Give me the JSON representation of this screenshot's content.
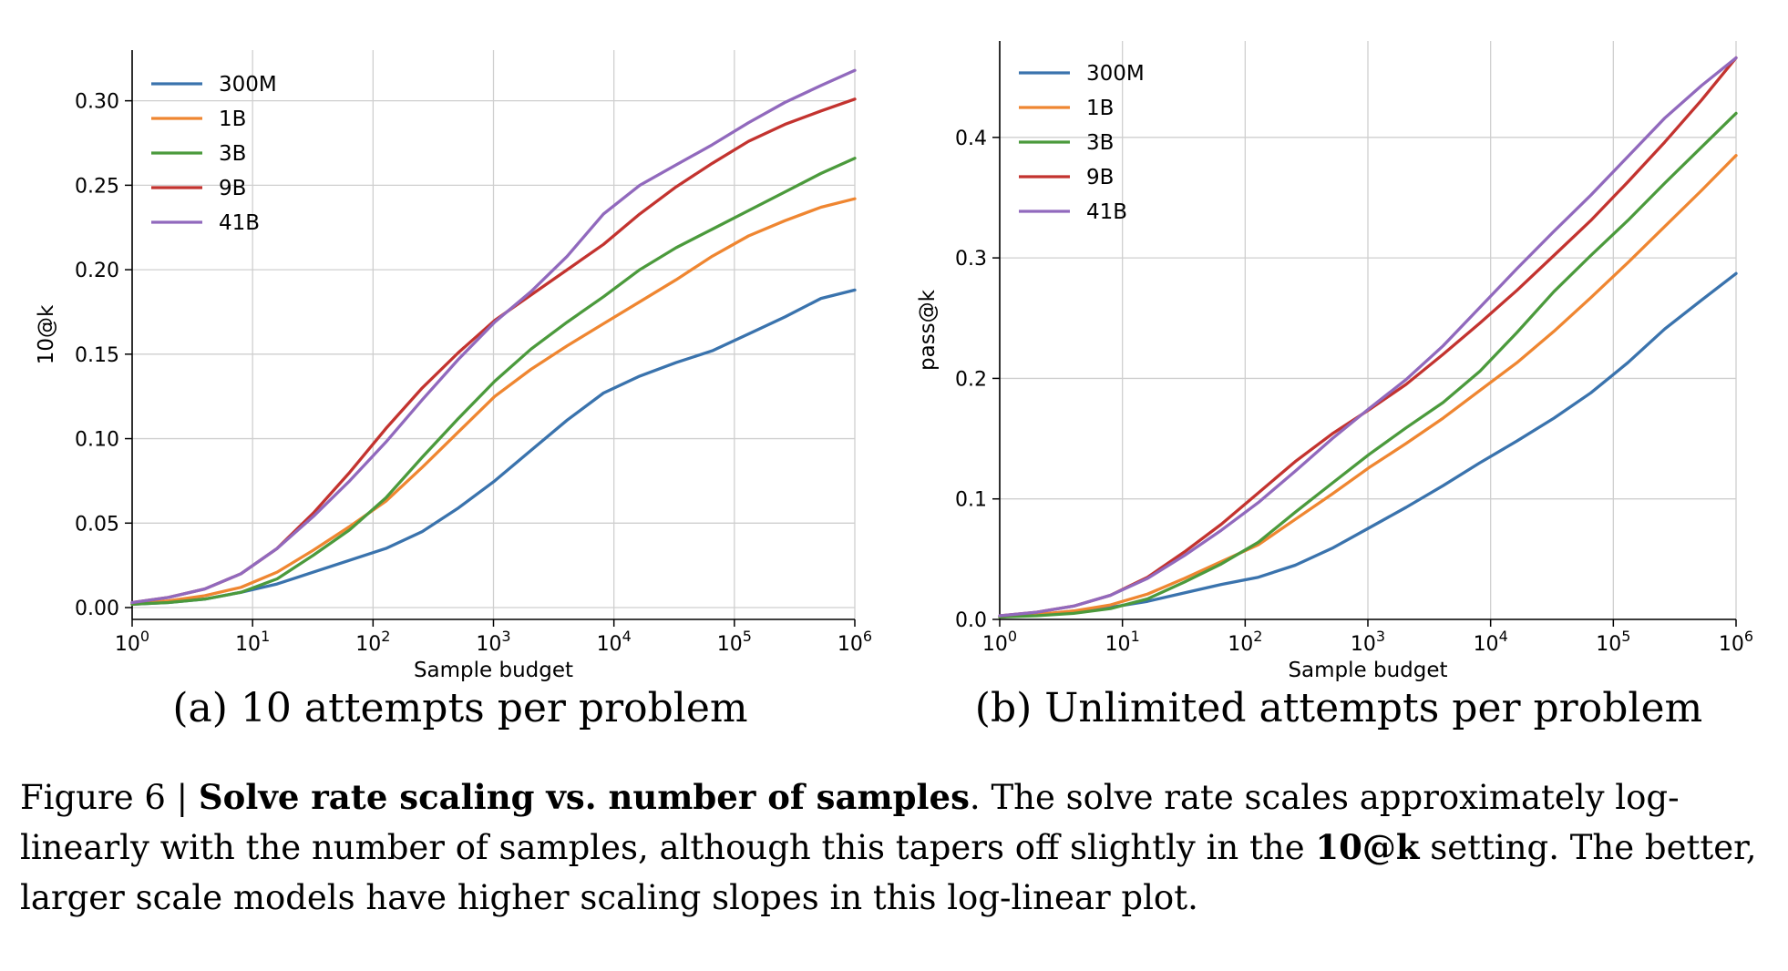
{
  "chart_data": [
    {
      "type": "line",
      "subcaption": "(a) 10 attempts per problem",
      "xlabel": "Sample budget",
      "ylabel": "10@k",
      "xscale": "log",
      "xlim": [
        1,
        1000000
      ],
      "ylim": [
        -0.007,
        0.33
      ],
      "x_ticks": [
        {
          "value": 1,
          "base": "10",
          "exp": "0"
        },
        {
          "value": 10,
          "base": "10",
          "exp": "1"
        },
        {
          "value": 100,
          "base": "10",
          "exp": "2"
        },
        {
          "value": 1000,
          "base": "10",
          "exp": "3"
        },
        {
          "value": 10000,
          "base": "10",
          "exp": "4"
        },
        {
          "value": 100000,
          "base": "10",
          "exp": "5"
        },
        {
          "value": 1000000,
          "base": "10",
          "exp": "6"
        }
      ],
      "y_ticks": [
        {
          "value": 0.0,
          "label": "0.00"
        },
        {
          "value": 0.05,
          "label": "0.05"
        },
        {
          "value": 0.1,
          "label": "0.10"
        },
        {
          "value": 0.15,
          "label": "0.15"
        },
        {
          "value": 0.2,
          "label": "0.20"
        },
        {
          "value": 0.25,
          "label": "0.25"
        },
        {
          "value": 0.3,
          "label": "0.30"
        }
      ],
      "grid": true,
      "legend": "top-left",
      "series": [
        {
          "name": "300M",
          "color": "#3a73ad",
          "points": [
            [
              1,
              0.002
            ],
            [
              2,
              0.003
            ],
            [
              4,
              0.005
            ],
            [
              8,
              0.009
            ],
            [
              16,
              0.014
            ],
            [
              32,
              0.021
            ],
            [
              64,
              0.028
            ],
            [
              128,
              0.035
            ],
            [
              256,
              0.045
            ],
            [
              512,
              0.059
            ],
            [
              1024,
              0.075
            ],
            [
              2048,
              0.093
            ],
            [
              4096,
              0.111
            ],
            [
              8192,
              0.127
            ],
            [
              16384,
              0.137
            ],
            [
              32768,
              0.145
            ],
            [
              65536,
              0.152
            ],
            [
              131072,
              0.162
            ],
            [
              262144,
              0.172
            ],
            [
              524288,
              0.183
            ],
            [
              1000000,
              0.188
            ]
          ]
        },
        {
          "name": "1B",
          "color": "#ef8631",
          "points": [
            [
              1,
              0.002
            ],
            [
              2,
              0.004
            ],
            [
              4,
              0.007
            ],
            [
              8,
              0.012
            ],
            [
              16,
              0.021
            ],
            [
              32,
              0.034
            ],
            [
              64,
              0.048
            ],
            [
              128,
              0.063
            ],
            [
              256,
              0.083
            ],
            [
              512,
              0.104
            ],
            [
              1024,
              0.125
            ],
            [
              2048,
              0.141
            ],
            [
              4096,
              0.155
            ],
            [
              8192,
              0.168
            ],
            [
              16384,
              0.181
            ],
            [
              32768,
              0.194
            ],
            [
              65536,
              0.208
            ],
            [
              131072,
              0.22
            ],
            [
              262144,
              0.229
            ],
            [
              524288,
              0.237
            ],
            [
              1000000,
              0.242
            ]
          ]
        },
        {
          "name": "3B",
          "color": "#4b9a3c",
          "points": [
            [
              1,
              0.002
            ],
            [
              2,
              0.003
            ],
            [
              4,
              0.005
            ],
            [
              8,
              0.009
            ],
            [
              16,
              0.017
            ],
            [
              32,
              0.031
            ],
            [
              64,
              0.046
            ],
            [
              128,
              0.065
            ],
            [
              256,
              0.089
            ],
            [
              512,
              0.112
            ],
            [
              1024,
              0.134
            ],
            [
              2048,
              0.153
            ],
            [
              4096,
              0.169
            ],
            [
              8192,
              0.184
            ],
            [
              16384,
              0.2
            ],
            [
              32768,
              0.213
            ],
            [
              65536,
              0.224
            ],
            [
              131072,
              0.235
            ],
            [
              262144,
              0.246
            ],
            [
              524288,
              0.257
            ],
            [
              1000000,
              0.266
            ]
          ]
        },
        {
          "name": "9B",
          "color": "#c3332f",
          "points": [
            [
              1,
              0.003
            ],
            [
              2,
              0.006
            ],
            [
              4,
              0.011
            ],
            [
              8,
              0.02
            ],
            [
              16,
              0.035
            ],
            [
              32,
              0.056
            ],
            [
              64,
              0.08
            ],
            [
              128,
              0.106
            ],
            [
              256,
              0.13
            ],
            [
              512,
              0.151
            ],
            [
              1024,
              0.17
            ],
            [
              2048,
              0.185
            ],
            [
              4096,
              0.2
            ],
            [
              8192,
              0.215
            ],
            [
              16384,
              0.233
            ],
            [
              32768,
              0.249
            ],
            [
              65536,
              0.263
            ],
            [
              131072,
              0.276
            ],
            [
              262144,
              0.286
            ],
            [
              524288,
              0.294
            ],
            [
              1000000,
              0.301
            ]
          ]
        },
        {
          "name": "41B",
          "color": "#9169bd",
          "points": [
            [
              1,
              0.003
            ],
            [
              2,
              0.006
            ],
            [
              4,
              0.011
            ],
            [
              8,
              0.02
            ],
            [
              16,
              0.035
            ],
            [
              32,
              0.054
            ],
            [
              64,
              0.075
            ],
            [
              128,
              0.098
            ],
            [
              256,
              0.123
            ],
            [
              512,
              0.147
            ],
            [
              1024,
              0.169
            ],
            [
              2048,
              0.187
            ],
            [
              4096,
              0.208
            ],
            [
              8192,
              0.233
            ],
            [
              16384,
              0.25
            ],
            [
              32768,
              0.262
            ],
            [
              65536,
              0.274
            ],
            [
              131072,
              0.287
            ],
            [
              262144,
              0.299
            ],
            [
              524288,
              0.309
            ],
            [
              1000000,
              0.318
            ]
          ]
        }
      ]
    },
    {
      "type": "line",
      "subcaption": "(b) Unlimited attempts per problem",
      "xlabel": "Sample budget",
      "ylabel": "pass@k",
      "xscale": "log",
      "xlim": [
        1,
        1000000
      ],
      "ylim": [
        0,
        0.48
      ],
      "x_ticks": [
        {
          "value": 1,
          "base": "10",
          "exp": "0"
        },
        {
          "value": 10,
          "base": "10",
          "exp": "1"
        },
        {
          "value": 100,
          "base": "10",
          "exp": "2"
        },
        {
          "value": 1000,
          "base": "10",
          "exp": "3"
        },
        {
          "value": 10000,
          "base": "10",
          "exp": "4"
        },
        {
          "value": 100000,
          "base": "10",
          "exp": "5"
        },
        {
          "value": 1000000,
          "base": "10",
          "exp": "6"
        }
      ],
      "y_ticks": [
        {
          "value": 0.0,
          "label": "0.0"
        },
        {
          "value": 0.1,
          "label": "0.1"
        },
        {
          "value": 0.2,
          "label": "0.2"
        },
        {
          "value": 0.3,
          "label": "0.3"
        },
        {
          "value": 0.4,
          "label": "0.4"
        }
      ],
      "grid": true,
      "legend": "top-left",
      "series": [
        {
          "name": "300M",
          "color": "#3a73ad",
          "points": [
            [
              1,
              0.002
            ],
            [
              2,
              0.004
            ],
            [
              4,
              0.006
            ],
            [
              8,
              0.01
            ],
            [
              16,
              0.015
            ],
            [
              32,
              0.022
            ],
            [
              64,
              0.029
            ],
            [
              128,
              0.035
            ],
            [
              256,
              0.045
            ],
            [
              512,
              0.059
            ],
            [
              1024,
              0.076
            ],
            [
              2048,
              0.093
            ],
            [
              4096,
              0.111
            ],
            [
              8192,
              0.13
            ],
            [
              16384,
              0.148
            ],
            [
              32768,
              0.167
            ],
            [
              65536,
              0.188
            ],
            [
              131072,
              0.213
            ],
            [
              262144,
              0.241
            ],
            [
              524288,
              0.265
            ],
            [
              1000000,
              0.287
            ]
          ]
        },
        {
          "name": "1B",
          "color": "#ef8631",
          "points": [
            [
              1,
              0.002
            ],
            [
              2,
              0.004
            ],
            [
              4,
              0.007
            ],
            [
              8,
              0.012
            ],
            [
              16,
              0.021
            ],
            [
              32,
              0.034
            ],
            [
              64,
              0.048
            ],
            [
              128,
              0.062
            ],
            [
              256,
              0.083
            ],
            [
              512,
              0.104
            ],
            [
              1024,
              0.126
            ],
            [
              2048,
              0.146
            ],
            [
              4096,
              0.167
            ],
            [
              8192,
              0.19
            ],
            [
              16384,
              0.213
            ],
            [
              32768,
              0.239
            ],
            [
              65536,
              0.267
            ],
            [
              131072,
              0.296
            ],
            [
              262144,
              0.326
            ],
            [
              524288,
              0.356
            ],
            [
              1000000,
              0.385
            ]
          ]
        },
        {
          "name": "3B",
          "color": "#4b9a3c",
          "points": [
            [
              1,
              0.002
            ],
            [
              2,
              0.003
            ],
            [
              4,
              0.005
            ],
            [
              8,
              0.009
            ],
            [
              16,
              0.017
            ],
            [
              32,
              0.031
            ],
            [
              64,
              0.046
            ],
            [
              128,
              0.064
            ],
            [
              256,
              0.089
            ],
            [
              512,
              0.113
            ],
            [
              1024,
              0.137
            ],
            [
              2048,
              0.159
            ],
            [
              4096,
              0.18
            ],
            [
              8192,
              0.206
            ],
            [
              16384,
              0.238
            ],
            [
              32768,
              0.272
            ],
            [
              65536,
              0.302
            ],
            [
              131072,
              0.331
            ],
            [
              262144,
              0.362
            ],
            [
              524288,
              0.392
            ],
            [
              1000000,
              0.42
            ]
          ]
        },
        {
          "name": "9B",
          "color": "#c3332f",
          "points": [
            [
              1,
              0.003
            ],
            [
              2,
              0.006
            ],
            [
              4,
              0.011
            ],
            [
              8,
              0.02
            ],
            [
              16,
              0.035
            ],
            [
              32,
              0.056
            ],
            [
              64,
              0.079
            ],
            [
              128,
              0.105
            ],
            [
              256,
              0.131
            ],
            [
              512,
              0.154
            ],
            [
              1024,
              0.174
            ],
            [
              2048,
              0.195
            ],
            [
              4096,
              0.22
            ],
            [
              8192,
              0.246
            ],
            [
              16384,
              0.273
            ],
            [
              32768,
              0.302
            ],
            [
              65536,
              0.331
            ],
            [
              131072,
              0.363
            ],
            [
              262144,
              0.396
            ],
            [
              524288,
              0.431
            ],
            [
              1000000,
              0.466
            ]
          ]
        },
        {
          "name": "41B",
          "color": "#9169bd",
          "points": [
            [
              1,
              0.003
            ],
            [
              2,
              0.006
            ],
            [
              4,
              0.011
            ],
            [
              8,
              0.02
            ],
            [
              16,
              0.034
            ],
            [
              32,
              0.053
            ],
            [
              64,
              0.074
            ],
            [
              128,
              0.097
            ],
            [
              256,
              0.123
            ],
            [
              512,
              0.15
            ],
            [
              1024,
              0.175
            ],
            [
              2048,
              0.199
            ],
            [
              4096,
              0.227
            ],
            [
              8192,
              0.259
            ],
            [
              16384,
              0.291
            ],
            [
              32768,
              0.322
            ],
            [
              65536,
              0.352
            ],
            [
              131072,
              0.384
            ],
            [
              262144,
              0.416
            ],
            [
              524288,
              0.443
            ],
            [
              1000000,
              0.466
            ]
          ]
        }
      ]
    }
  ],
  "caption": {
    "prefix": "Figure 6 | ",
    "bold_title": "Solve rate scaling vs. number of samples",
    "text1": ". The solve rate scales approximately log-linearly with the number of samples, although this tapers off slightly in the ",
    "bold_term": "10@k",
    "text2": " setting. The better, larger scale models have higher scaling slopes in this log-linear plot."
  }
}
